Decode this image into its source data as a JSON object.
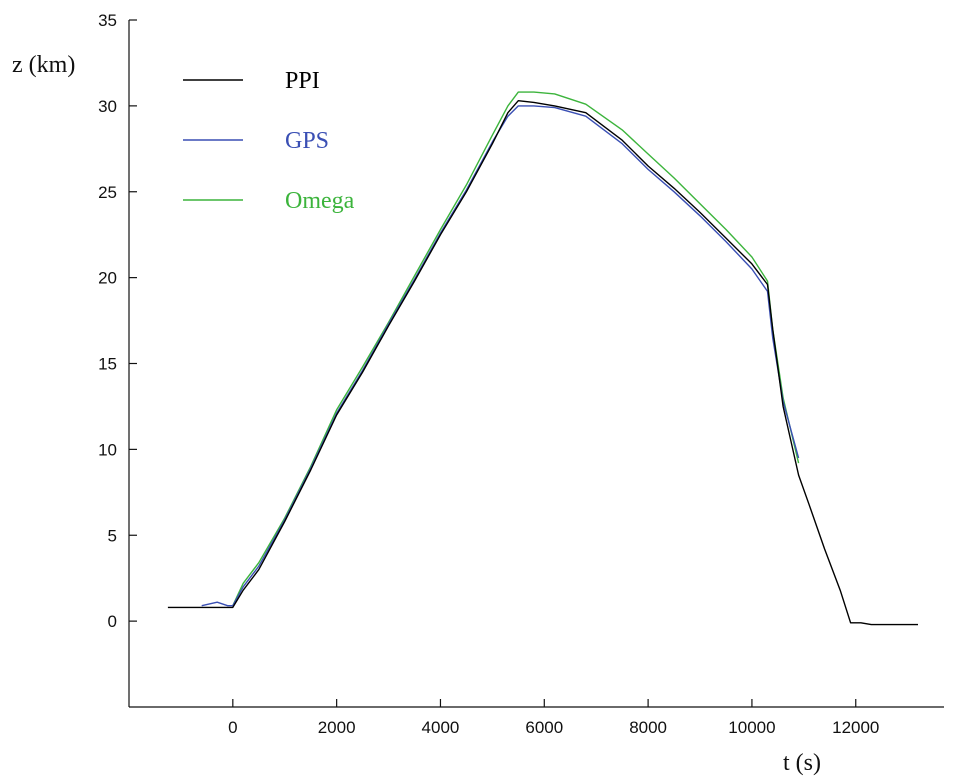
{
  "chart_data": {
    "type": "line",
    "title": "",
    "xlabel": "t (s)",
    "ylabel": "z (km)",
    "xlim": [
      -2000,
      13700
    ],
    "ylim": [
      -5,
      35
    ],
    "xticks": [
      0,
      2000,
      4000,
      6000,
      8000,
      10000,
      12000
    ],
    "yticks": [
      0,
      5,
      10,
      15,
      20,
      25,
      30,
      35
    ],
    "grid": false,
    "legend_position": "top-left",
    "series": [
      {
        "name": "PPI",
        "color": "#000000",
        "points": [
          [
            -1250,
            0.8
          ],
          [
            -600,
            0.8
          ],
          [
            0,
            0.8
          ],
          [
            200,
            1.8
          ],
          [
            500,
            3.0
          ],
          [
            1000,
            5.8
          ],
          [
            1500,
            8.8
          ],
          [
            2000,
            12.0
          ],
          [
            2500,
            14.5
          ],
          [
            3000,
            17.2
          ],
          [
            3500,
            19.8
          ],
          [
            4000,
            22.5
          ],
          [
            4500,
            25.0
          ],
          [
            5000,
            27.8
          ],
          [
            5300,
            29.6
          ],
          [
            5500,
            30.3
          ],
          [
            5800,
            30.2
          ],
          [
            6200,
            30.0
          ],
          [
            6800,
            29.6
          ],
          [
            7500,
            28.0
          ],
          [
            8000,
            26.5
          ],
          [
            8500,
            25.2
          ],
          [
            9000,
            23.8
          ],
          [
            9500,
            22.3
          ],
          [
            10000,
            20.8
          ],
          [
            10300,
            19.6
          ],
          [
            10400,
            17.0
          ],
          [
            10600,
            12.5
          ],
          [
            10900,
            8.5
          ],
          [
            11100,
            6.8
          ],
          [
            11400,
            4.2
          ],
          [
            11700,
            1.8
          ],
          [
            11900,
            -0.1
          ],
          [
            12100,
            -0.1
          ],
          [
            12300,
            -0.2
          ],
          [
            13200,
            -0.2
          ]
        ]
      },
      {
        "name": "GPS",
        "color": "#3a4fb4",
        "points": [
          [
            -600,
            0.9
          ],
          [
            -300,
            1.1
          ],
          [
            -100,
            0.9
          ],
          [
            0,
            0.9
          ],
          [
            200,
            2.0
          ],
          [
            500,
            3.2
          ],
          [
            1000,
            5.9
          ],
          [
            1500,
            8.9
          ],
          [
            2000,
            12.1
          ],
          [
            2500,
            14.6
          ],
          [
            3000,
            17.3
          ],
          [
            3500,
            19.9
          ],
          [
            4000,
            22.6
          ],
          [
            4500,
            25.1
          ],
          [
            5000,
            27.9
          ],
          [
            5300,
            29.4
          ],
          [
            5500,
            30.0
          ],
          [
            5800,
            30.0
          ],
          [
            6200,
            29.9
          ],
          [
            6800,
            29.4
          ],
          [
            7500,
            27.8
          ],
          [
            8000,
            26.3
          ],
          [
            8500,
            25.0
          ],
          [
            9000,
            23.6
          ],
          [
            9500,
            22.1
          ],
          [
            10000,
            20.5
          ],
          [
            10300,
            19.2
          ],
          [
            10400,
            16.5
          ],
          [
            10600,
            12.8
          ],
          [
            10900,
            9.5
          ]
        ]
      },
      {
        "name": "Omega",
        "color": "#3cb43c",
        "points": [
          [
            0,
            0.9
          ],
          [
            200,
            2.2
          ],
          [
            500,
            3.4
          ],
          [
            1000,
            6.0
          ],
          [
            1500,
            9.0
          ],
          [
            2000,
            12.3
          ],
          [
            2500,
            14.8
          ],
          [
            3000,
            17.4
          ],
          [
            3500,
            20.1
          ],
          [
            4000,
            22.8
          ],
          [
            4500,
            25.4
          ],
          [
            5000,
            28.3
          ],
          [
            5300,
            30.0
          ],
          [
            5500,
            30.8
          ],
          [
            5800,
            30.8
          ],
          [
            6200,
            30.7
          ],
          [
            6800,
            30.1
          ],
          [
            7500,
            28.6
          ],
          [
            8000,
            27.2
          ],
          [
            8500,
            25.8
          ],
          [
            9000,
            24.3
          ],
          [
            9500,
            22.8
          ],
          [
            10000,
            21.2
          ],
          [
            10300,
            19.8
          ],
          [
            10400,
            17.0
          ],
          [
            10600,
            13.0
          ],
          [
            10900,
            9.2
          ]
        ]
      }
    ]
  }
}
